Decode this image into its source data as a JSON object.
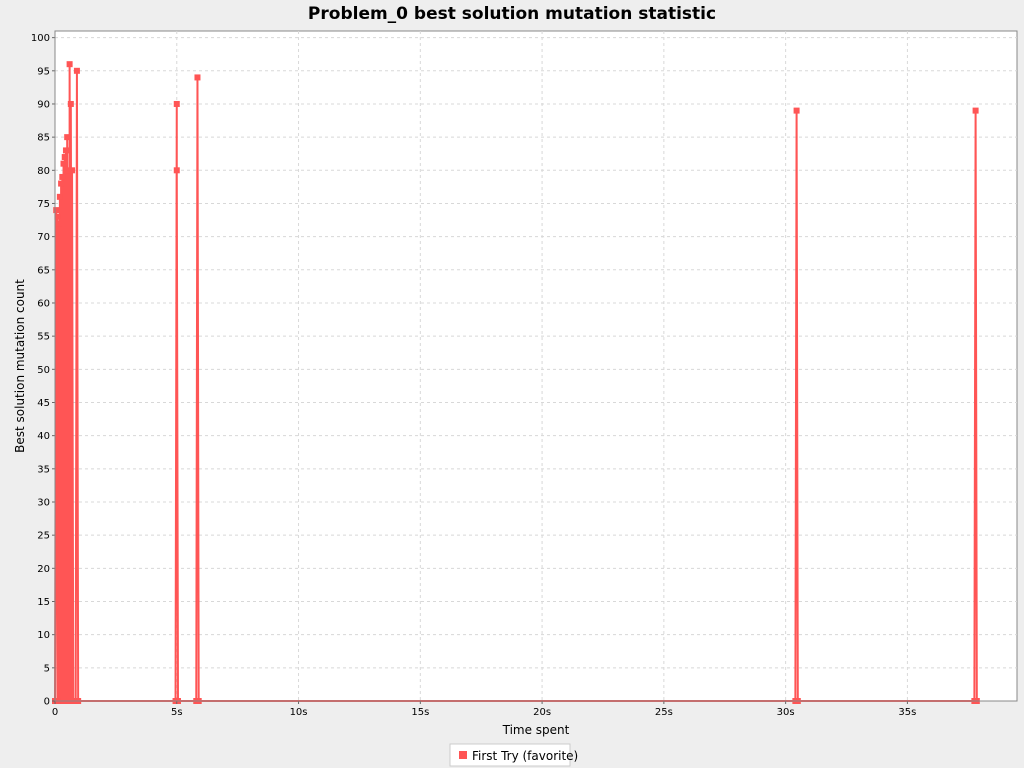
{
  "chart_data": {
    "type": "line",
    "title": "Problem_0 best solution mutation statistic",
    "xlabel": "Time spent",
    "ylabel": "Best solution mutation count",
    "xlim": [
      0,
      39.5
    ],
    "ylim": [
      0,
      101
    ],
    "x_ticks": [
      {
        "value": 0,
        "label": "0"
      },
      {
        "value": 5,
        "label": "5s"
      },
      {
        "value": 10,
        "label": "10s"
      },
      {
        "value": 15,
        "label": "15s"
      },
      {
        "value": 20,
        "label": "20s"
      },
      {
        "value": 25,
        "label": "25s"
      },
      {
        "value": 30,
        "label": "30s"
      },
      {
        "value": 35,
        "label": "35s"
      }
    ],
    "y_ticks": [
      0,
      5,
      10,
      15,
      20,
      25,
      30,
      35,
      40,
      45,
      50,
      55,
      60,
      65,
      70,
      75,
      80,
      85,
      90,
      95,
      100
    ],
    "grid": true,
    "legend_position": "bottom",
    "colors": {
      "series": "#ff5555",
      "plot_bg": "#ffffff",
      "grid": "#d8d8d8",
      "page_bg": "#eeeeee"
    },
    "series": [
      {
        "name": "First Try (favorite)",
        "points": [
          [
            0.0,
            0
          ],
          [
            0.05,
            74
          ],
          [
            0.1,
            0
          ],
          [
            0.1,
            73
          ],
          [
            0.15,
            0
          ],
          [
            0.15,
            72
          ],
          [
            0.2,
            0
          ],
          [
            0.2,
            76
          ],
          [
            0.25,
            0
          ],
          [
            0.25,
            78
          ],
          [
            0.3,
            0
          ],
          [
            0.3,
            79
          ],
          [
            0.35,
            0
          ],
          [
            0.35,
            81
          ],
          [
            0.4,
            0
          ],
          [
            0.4,
            82
          ],
          [
            0.45,
            0
          ],
          [
            0.45,
            83
          ],
          [
            0.5,
            0
          ],
          [
            0.5,
            85
          ],
          [
            0.55,
            0
          ],
          [
            0.55,
            80
          ],
          [
            0.6,
            0
          ],
          [
            0.6,
            96
          ],
          [
            0.65,
            0
          ],
          [
            0.65,
            90
          ],
          [
            0.7,
            0
          ],
          [
            0.7,
            80
          ],
          [
            0.75,
            0
          ],
          [
            0.85,
            0
          ],
          [
            0.9,
            95
          ],
          [
            0.95,
            0
          ],
          [
            4.95,
            0
          ],
          [
            5.0,
            90
          ],
          [
            5.0,
            80
          ],
          [
            5.05,
            0
          ],
          [
            5.8,
            0
          ],
          [
            5.85,
            94
          ],
          [
            5.9,
            0
          ],
          [
            30.4,
            0
          ],
          [
            30.45,
            89
          ],
          [
            30.5,
            0
          ],
          [
            37.75,
            0
          ],
          [
            37.8,
            89
          ],
          [
            37.85,
            0
          ]
        ]
      }
    ]
  }
}
